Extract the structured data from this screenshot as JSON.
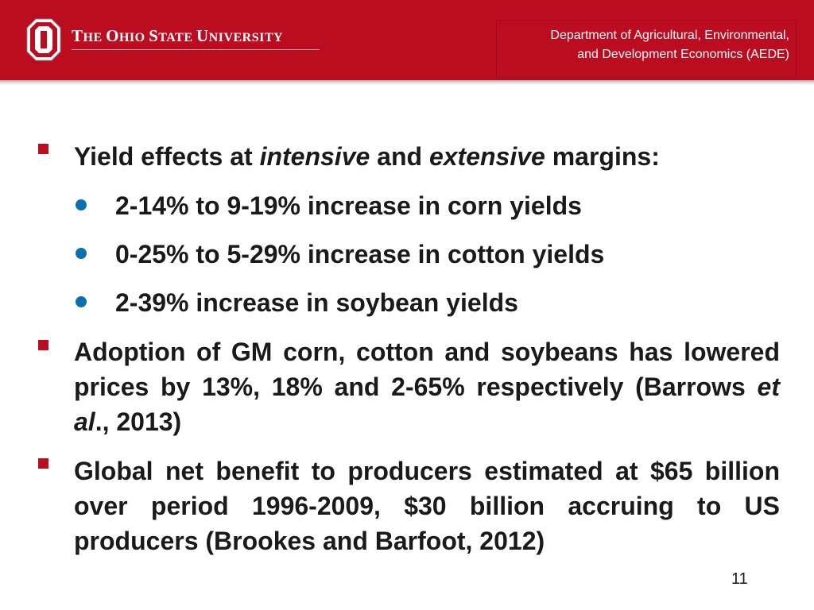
{
  "header": {
    "university_parts": [
      {
        "cap": "T",
        "rest": "HE "
      },
      {
        "cap": "O",
        "rest": "HIO "
      },
      {
        "cap": "S",
        "rest": "TATE "
      },
      {
        "cap": "U",
        "rest": "NIVERSITY"
      }
    ],
    "department_line1": "Department of Agricultural, Environmental,",
    "department_line2": "and Development Economics (AEDE)",
    "logo_letter": "O",
    "brand_color": "#bb0c20"
  },
  "bullets": [
    {
      "parts": [
        {
          "text": "Yield effects at ",
          "italic": false
        },
        {
          "text": "intensive",
          "italic": true
        },
        {
          "text": " and ",
          "italic": false
        },
        {
          "text": "extensive",
          "italic": true
        },
        {
          "text": " margins:",
          "italic": false
        }
      ],
      "sub": [
        "2-14% to 9-19% increase in corn yields",
        "0-25% to 5-29% increase in cotton yields",
        "2-39% increase in soybean yields"
      ]
    },
    {
      "parts": [
        {
          "text": "Adoption of GM corn, cotton and soybeans has lowered prices by 13%, 18% and 2-65% respectively (Barrows ",
          "italic": false
        },
        {
          "text": "et al",
          "italic": true
        },
        {
          "text": "., 2013)",
          "italic": false
        }
      ]
    },
    {
      "parts": [
        {
          "text": "Global net benefit to producers estimated at $65 billion over period 1996-2009, $30 billion accruing to US producers (Brookes and Barfoot, 2012)",
          "italic": false
        }
      ]
    }
  ],
  "page_number": "11",
  "colors": {
    "bullet_square": "#bb0c20",
    "bullet_dot": "#0b6fb0"
  }
}
